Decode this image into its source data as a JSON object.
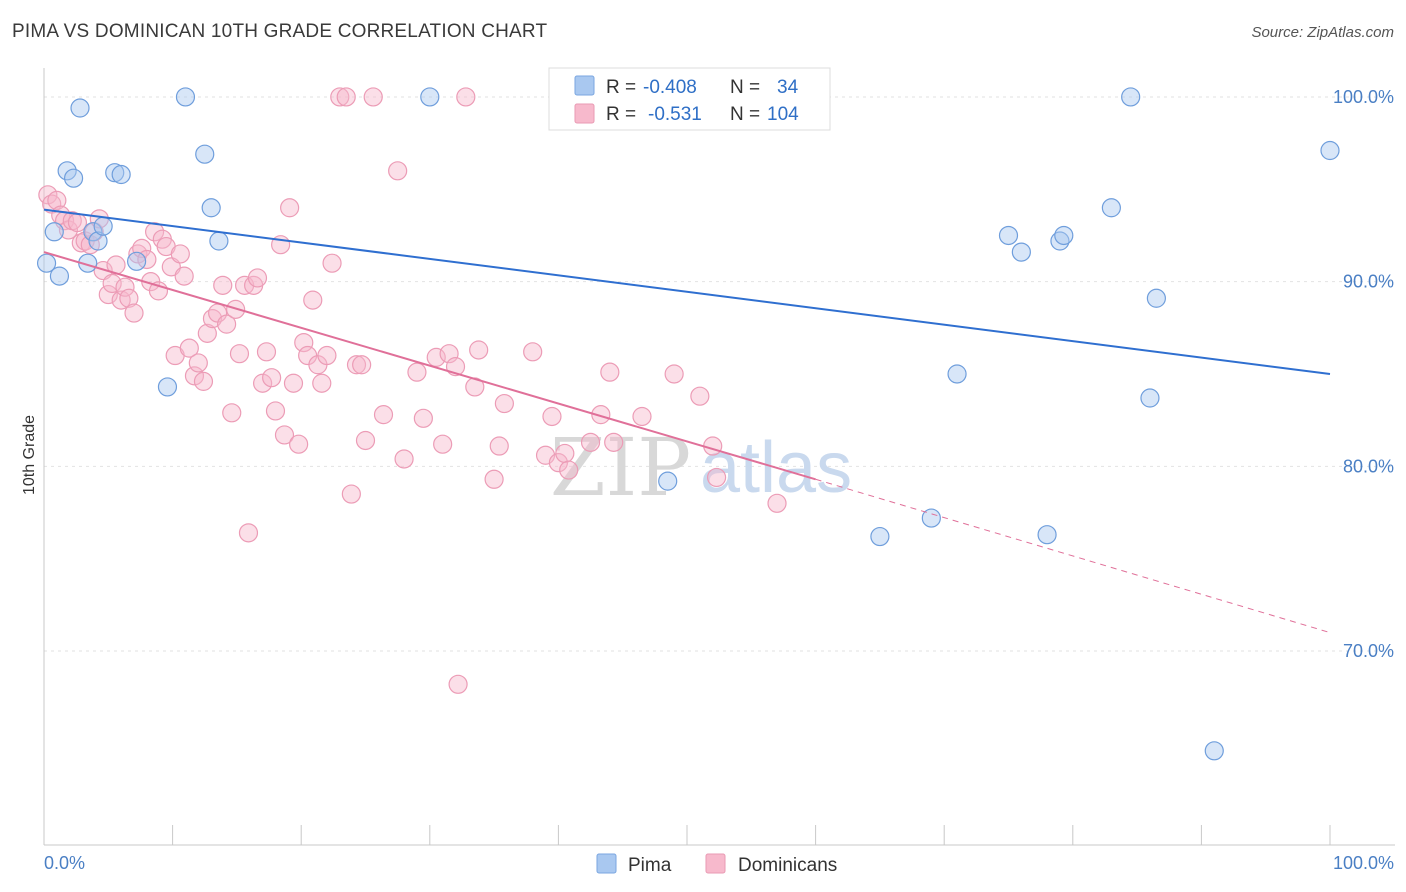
{
  "title": "PIMA VS DOMINICAN 10TH GRADE CORRELATION CHART",
  "source": "Source: ZipAtlas.com",
  "watermark": {
    "zip": "ZIP",
    "atlas": "atlas"
  },
  "legend": {
    "pima": {
      "r_label": "R =",
      "r_value": "-0.408",
      "n_label": "N =",
      "n_value": "34"
    },
    "dominicans": {
      "r_label": "R =",
      "r_value": "-0.531",
      "n_label": "N =",
      "n_value": "104"
    }
  },
  "colors": {
    "pima": "#2f6fd0",
    "dominicans": "#e07099",
    "pima_fill": "#a9c8f0",
    "dominicans_fill": "#f7b9cc",
    "axis_text": "#4a7fc4"
  },
  "chart_data": {
    "type": "scatter",
    "title": "PIMA VS DOMINICAN 10TH GRADE CORRELATION CHART",
    "xlabel": "",
    "ylabel": "10th Grade",
    "xlim": [
      0,
      100
    ],
    "ylim": [
      59.5,
      102
    ],
    "x_tick_labels": [
      "0.0%",
      "100.0%"
    ],
    "y_ticks": [
      70,
      80,
      90,
      100
    ],
    "y_tick_labels": [
      "70.0%",
      "80.0%",
      "90.0%",
      "100.0%"
    ],
    "grid": true,
    "legend_position": "top-center",
    "series": [
      {
        "name": "Pima",
        "points": [
          [
            0.2,
            91.0
          ],
          [
            0.8,
            92.7
          ],
          [
            1.2,
            90.3
          ],
          [
            1.8,
            96.0
          ],
          [
            2.3,
            95.6
          ],
          [
            2.8,
            99.4
          ],
          [
            3.4,
            91.0
          ],
          [
            3.8,
            92.7
          ],
          [
            4.2,
            92.2
          ],
          [
            4.6,
            93.0
          ],
          [
            5.5,
            95.9
          ],
          [
            6.0,
            95.8
          ],
          [
            7.2,
            91.1
          ],
          [
            9.6,
            84.3
          ],
          [
            11.0,
            100.0
          ],
          [
            12.5,
            96.9
          ],
          [
            13.0,
            94.0
          ],
          [
            13.6,
            92.2
          ],
          [
            30.0,
            100.0
          ],
          [
            48.5,
            79.2
          ],
          [
            65.0,
            76.2
          ],
          [
            69.0,
            77.2
          ],
          [
            71.0,
            85.0
          ],
          [
            75.0,
            92.5
          ],
          [
            76.0,
            91.6
          ],
          [
            79.0,
            92.2
          ],
          [
            79.3,
            92.5
          ],
          [
            78.0,
            76.3
          ],
          [
            83.0,
            94.0
          ],
          [
            84.5,
            100.0
          ],
          [
            86.0,
            83.7
          ],
          [
            86.5,
            89.1
          ],
          [
            91.0,
            64.6
          ],
          [
            100.0,
            97.1
          ]
        ],
        "trend": {
          "x": [
            0,
            100
          ],
          "y": [
            93.9,
            85.0
          ]
        }
      },
      {
        "name": "Dominicans",
        "points": [
          [
            0.3,
            94.7
          ],
          [
            0.6,
            94.2
          ],
          [
            1.0,
            94.4
          ],
          [
            1.3,
            93.6
          ],
          [
            1.6,
            93.3
          ],
          [
            1.9,
            92.8
          ],
          [
            2.2,
            93.3
          ],
          [
            2.6,
            93.2
          ],
          [
            2.9,
            92.1
          ],
          [
            3.2,
            92.2
          ],
          [
            3.6,
            92.0
          ],
          [
            3.9,
            92.7
          ],
          [
            4.3,
            93.4
          ],
          [
            4.6,
            90.6
          ],
          [
            5.0,
            89.3
          ],
          [
            5.3,
            89.9
          ],
          [
            5.6,
            90.9
          ],
          [
            6.0,
            89.0
          ],
          [
            6.3,
            89.7
          ],
          [
            6.6,
            89.1
          ],
          [
            7.0,
            88.3
          ],
          [
            7.3,
            91.5
          ],
          [
            7.6,
            91.8
          ],
          [
            8.0,
            91.2
          ],
          [
            8.3,
            90.0
          ],
          [
            8.6,
            92.7
          ],
          [
            8.9,
            89.5
          ],
          [
            9.2,
            92.3
          ],
          [
            9.5,
            91.9
          ],
          [
            9.9,
            90.8
          ],
          [
            10.2,
            86.0
          ],
          [
            10.6,
            91.5
          ],
          [
            10.9,
            90.3
          ],
          [
            11.3,
            86.4
          ],
          [
            11.7,
            84.9
          ],
          [
            12.0,
            85.6
          ],
          [
            12.4,
            84.6
          ],
          [
            12.7,
            87.2
          ],
          [
            13.1,
            88.0
          ],
          [
            13.5,
            88.3
          ],
          [
            13.9,
            89.8
          ],
          [
            14.2,
            87.7
          ],
          [
            14.6,
            82.9
          ],
          [
            14.9,
            88.5
          ],
          [
            15.2,
            86.1
          ],
          [
            15.6,
            89.8
          ],
          [
            15.9,
            76.4
          ],
          [
            16.3,
            89.8
          ],
          [
            16.6,
            90.2
          ],
          [
            17.0,
            84.5
          ],
          [
            17.3,
            86.2
          ],
          [
            17.7,
            84.8
          ],
          [
            18.0,
            83.0
          ],
          [
            18.4,
            92.0
          ],
          [
            18.7,
            81.7
          ],
          [
            19.1,
            94.0
          ],
          [
            19.4,
            84.5
          ],
          [
            19.8,
            81.2
          ],
          [
            20.2,
            86.7
          ],
          [
            20.5,
            86.0
          ],
          [
            20.9,
            89.0
          ],
          [
            21.3,
            85.5
          ],
          [
            21.6,
            84.5
          ],
          [
            22.0,
            86.0
          ],
          [
            22.4,
            91.0
          ],
          [
            23.0,
            100.0
          ],
          [
            23.5,
            100.0
          ],
          [
            23.9,
            78.5
          ],
          [
            24.3,
            85.5
          ],
          [
            24.7,
            85.5
          ],
          [
            25.0,
            81.4
          ],
          [
            25.6,
            100.0
          ],
          [
            26.4,
            82.8
          ],
          [
            27.5,
            96.0
          ],
          [
            28.0,
            80.4
          ],
          [
            29.0,
            85.1
          ],
          [
            29.5,
            82.6
          ],
          [
            30.5,
            85.9
          ],
          [
            31.0,
            81.2
          ],
          [
            31.5,
            86.1
          ],
          [
            32.0,
            85.4
          ],
          [
            32.2,
            68.2
          ],
          [
            32.8,
            100.0
          ],
          [
            33.5,
            84.3
          ],
          [
            33.8,
            86.3
          ],
          [
            35.0,
            79.3
          ],
          [
            35.8,
            83.4
          ],
          [
            35.4,
            81.1
          ],
          [
            38.0,
            86.2
          ],
          [
            39.0,
            80.6
          ],
          [
            39.5,
            82.7
          ],
          [
            40.0,
            80.2
          ],
          [
            40.5,
            80.7
          ],
          [
            40.8,
            79.8
          ],
          [
            42.5,
            81.3
          ],
          [
            43.3,
            82.8
          ],
          [
            44.0,
            85.1
          ],
          [
            44.3,
            81.3
          ],
          [
            46.5,
            82.7
          ],
          [
            49.0,
            85.0
          ],
          [
            51.0,
            83.8
          ],
          [
            52.0,
            81.1
          ],
          [
            52.3,
            79.4
          ],
          [
            57.0,
            78.0
          ]
        ],
        "trend": {
          "x": [
            0,
            60
          ],
          "y": [
            91.6,
            79.3
          ]
        },
        "trend_dashed": {
          "x": [
            60,
            100
          ],
          "y": [
            79.3,
            71.0
          ]
        }
      }
    ]
  },
  "bottom_legend": [
    {
      "label": "Pima"
    },
    {
      "label": "Dominicans"
    }
  ]
}
